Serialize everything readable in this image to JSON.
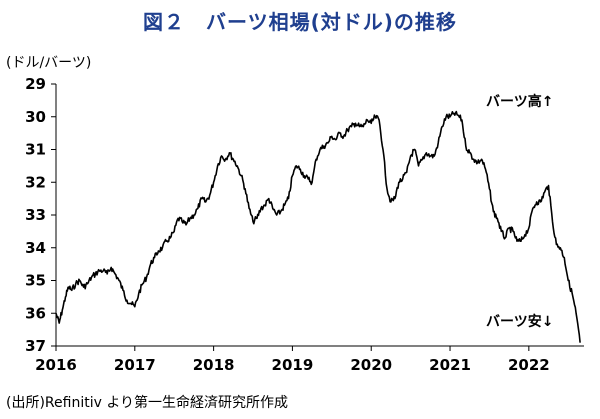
{
  "chart_data": {
    "type": "line",
    "title": "図２　バーツ相場(対ドル)の推移",
    "ylabel": "(ドル/バーツ)",
    "y_inverted": true,
    "ylim": [
      29,
      37
    ],
    "yticks": [
      29,
      30,
      31,
      32,
      33,
      34,
      35,
      36,
      37
    ],
    "xlim": [
      2016.0,
      2022.7
    ],
    "xticks": [
      "2016",
      "2017",
      "2018",
      "2019",
      "2020",
      "2021",
      "2022"
    ],
    "annotations": {
      "top": "バーツ高↑",
      "bottom": "バーツ安↓"
    },
    "source": "(出所)Refinitiv より第一生命経済研究所作成",
    "series": [
      {
        "color": "#000000",
        "x": [
          2016.0,
          2016.04,
          2016.08,
          2016.12,
          2016.16,
          2016.2,
          2016.25,
          2016.3,
          2016.35,
          2016.4,
          2016.45,
          2016.5,
          2016.55,
          2016.6,
          2016.65,
          2016.7,
          2016.75,
          2016.8,
          2016.85,
          2016.9,
          2016.95,
          2017.0,
          2017.05,
          2017.1,
          2017.15,
          2017.2,
          2017.25,
          2017.3,
          2017.35,
          2017.4,
          2017.45,
          2017.5,
          2017.55,
          2017.6,
          2017.65,
          2017.7,
          2017.75,
          2017.8,
          2017.85,
          2017.9,
          2017.95,
          2018.0,
          2018.05,
          2018.1,
          2018.15,
          2018.2,
          2018.25,
          2018.3,
          2018.35,
          2018.4,
          2018.45,
          2018.5,
          2018.55,
          2018.6,
          2018.65,
          2018.7,
          2018.75,
          2018.8,
          2018.85,
          2018.9,
          2018.95,
          2019.0,
          2019.05,
          2019.1,
          2019.15,
          2019.2,
          2019.25,
          2019.3,
          2019.35,
          2019.4,
          2019.45,
          2019.5,
          2019.55,
          2019.6,
          2019.65,
          2019.7,
          2019.75,
          2019.8,
          2019.85,
          2019.9,
          2019.95,
          2020.0,
          2020.05,
          2020.1,
          2020.15,
          2020.2,
          2020.25,
          2020.3,
          2020.35,
          2020.4,
          2020.45,
          2020.5,
          2020.55,
          2020.6,
          2020.65,
          2020.7,
          2020.75,
          2020.8,
          2020.85,
          2020.9,
          2020.95,
          2021.0,
          2021.05,
          2021.1,
          2021.15,
          2021.2,
          2021.25,
          2021.3,
          2021.35,
          2021.4,
          2021.45,
          2021.5,
          2021.55,
          2021.6,
          2021.65,
          2021.7,
          2021.75,
          2021.8,
          2021.85,
          2021.9,
          2021.95,
          2022.0,
          2022.05,
          2022.1,
          2022.15,
          2022.2,
          2022.25,
          2022.3,
          2022.35,
          2022.4,
          2022.45,
          2022.5,
          2022.55,
          2022.6,
          2022.65
        ],
        "values": [
          36.0,
          36.3,
          35.9,
          35.5,
          35.2,
          35.3,
          35.1,
          35.0,
          35.2,
          35.1,
          34.9,
          34.8,
          34.7,
          34.7,
          34.8,
          34.6,
          34.8,
          35.0,
          35.3,
          35.6,
          35.7,
          35.8,
          35.4,
          35.1,
          34.9,
          34.5,
          34.3,
          34.1,
          34.0,
          33.8,
          33.7,
          33.5,
          33.1,
          33.2,
          33.3,
          33.1,
          33.0,
          32.8,
          32.5,
          32.6,
          32.4,
          32.0,
          31.5,
          31.2,
          31.3,
          31.1,
          31.3,
          31.5,
          31.8,
          32.2,
          32.8,
          33.2,
          33.1,
          32.8,
          32.7,
          32.5,
          32.8,
          33.0,
          32.9,
          32.7,
          32.5,
          31.8,
          31.5,
          31.6,
          31.8,
          31.9,
          32.0,
          31.3,
          31.0,
          30.9,
          30.8,
          30.6,
          30.7,
          30.5,
          30.6,
          30.4,
          30.3,
          30.2,
          30.3,
          30.3,
          30.1,
          30.2,
          30.0,
          30.1,
          31.0,
          32.2,
          32.6,
          32.5,
          32.0,
          31.9,
          31.7,
          31.2,
          31.0,
          31.5,
          31.3,
          31.1,
          31.2,
          31.2,
          30.8,
          30.3,
          30.0,
          30.0,
          29.9,
          29.95,
          30.1,
          30.9,
          31.1,
          31.3,
          31.4,
          31.3,
          31.6,
          32.2,
          32.9,
          33.1,
          33.5,
          33.7,
          33.4,
          33.5,
          33.8,
          33.8,
          33.6,
          33.4,
          32.8,
          32.6,
          32.6,
          32.3,
          32.1,
          33.2,
          33.9,
          34.0,
          34.3,
          35.0,
          35.4,
          36.0,
          36.9
        ]
      }
    ]
  }
}
